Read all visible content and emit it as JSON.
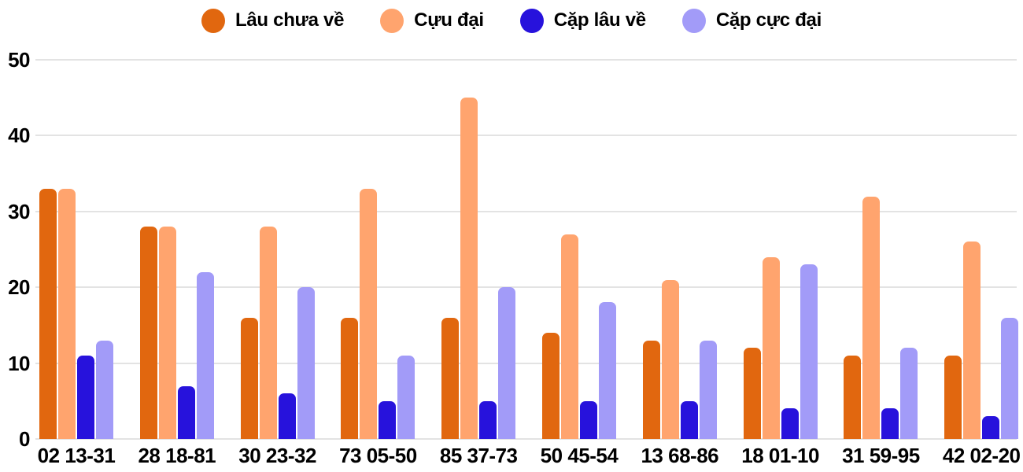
{
  "chart_data": {
    "type": "bar",
    "title": "",
    "xlabel": "",
    "ylabel": "",
    "categories": [
      "02 13-31",
      "28 18-81",
      "30 23-32",
      "73 05-50",
      "85 37-73",
      "50 45-54",
      "13 68-86",
      "18 01-10",
      "31 59-95",
      "42 02-20"
    ],
    "series": [
      {
        "name": "Lâu chưa về",
        "color": "#E1670F",
        "values": [
          33,
          28,
          16,
          16,
          16,
          14,
          13,
          12,
          11,
          11
        ]
      },
      {
        "name": "Cựu đại",
        "color": "#FFA46E",
        "values": [
          33,
          28,
          28,
          33,
          45,
          27,
          21,
          24,
          32,
          26
        ]
      },
      {
        "name": "Cặp lâu về",
        "color": "#2712DC",
        "values": [
          11,
          7,
          6,
          5,
          5,
          5,
          5,
          4,
          4,
          3
        ]
      },
      {
        "name": "Cặp cực đại",
        "color": "#A29BF8",
        "values": [
          13,
          22,
          20,
          11,
          20,
          18,
          13,
          23,
          12,
          16
        ]
      }
    ],
    "ylim": [
      0,
      50
    ],
    "yticks": [
      0,
      10,
      20,
      30,
      40,
      50
    ],
    "grid": true,
    "gridline_color": "#E3E3E3",
    "legend_position": "top",
    "background": "#FFFFFF",
    "text_color": "#000000"
  }
}
